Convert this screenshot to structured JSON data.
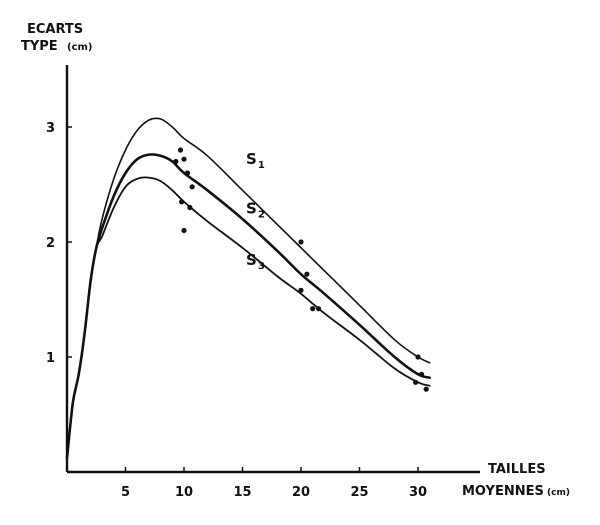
{
  "chart_data": {
    "type": "line",
    "ylabel_line1": "ECARTS",
    "ylabel_line2": "TYPE",
    "ylabel_unit": "(cm)",
    "xlabel_line1": "TAILLES",
    "xlabel_line2": "MOYENNES",
    "xlabel_unit": "(cm)",
    "xlim": [
      0,
      31
    ],
    "ylim": [
      0,
      3.5
    ],
    "x_ticks": [
      5,
      10,
      15,
      20,
      25,
      30
    ],
    "x_tick_labels": [
      "5",
      "10",
      "15",
      "20",
      "25",
      "30"
    ],
    "y_ticks": [
      1,
      2,
      3
    ],
    "y_tick_labels": [
      "1",
      "2",
      "3"
    ],
    "series": [
      {
        "name": "S",
        "subscript": "1",
        "x": [
          0,
          0.5,
          1,
          1.5,
          2,
          2.5,
          3,
          4,
          5,
          6,
          7,
          8,
          9,
          10,
          12,
          15,
          18,
          20,
          22,
          25,
          28,
          30,
          31
        ],
        "y": [
          0.12,
          0.6,
          0.85,
          1.2,
          1.65,
          1.95,
          2.2,
          2.55,
          2.8,
          2.97,
          3.06,
          3.07,
          3.0,
          2.9,
          2.75,
          2.45,
          2.15,
          1.95,
          1.75,
          1.45,
          1.15,
          1.0,
          0.95
        ]
      },
      {
        "name": "S",
        "subscript": "2",
        "x": [
          0,
          0.5,
          1,
          1.5,
          2,
          2.5,
          3,
          4,
          5,
          6,
          7,
          8,
          9,
          10,
          12,
          15,
          18,
          20,
          22,
          25,
          28,
          30,
          31
        ],
        "y": [
          0.12,
          0.6,
          0.85,
          1.2,
          1.65,
          1.95,
          2.12,
          2.4,
          2.6,
          2.72,
          2.76,
          2.75,
          2.7,
          2.6,
          2.45,
          2.2,
          1.92,
          1.72,
          1.55,
          1.28,
          1.0,
          0.85,
          0.82
        ]
      },
      {
        "name": "S",
        "subscript": "3",
        "x": [
          0,
          0.5,
          1,
          1.5,
          2,
          2.5,
          3,
          4,
          5,
          6,
          7,
          8,
          9,
          10,
          12,
          15,
          18,
          20,
          22,
          25,
          28,
          30,
          31
        ],
        "y": [
          0.12,
          0.6,
          0.85,
          1.2,
          1.65,
          1.95,
          2.05,
          2.3,
          2.48,
          2.55,
          2.56,
          2.53,
          2.45,
          2.35,
          2.18,
          1.95,
          1.7,
          1.55,
          1.38,
          1.15,
          0.9,
          0.78,
          0.75
        ]
      }
    ],
    "points": {
      "x": [
        9.3,
        9.7,
        10.0,
        10.3,
        10.7,
        9.8,
        10.5,
        10.0,
        20.0,
        20.5,
        20.0,
        21.0,
        21.5,
        30.0,
        30.3,
        29.8,
        30.7
      ],
      "y": [
        2.7,
        2.8,
        2.72,
        2.6,
        2.48,
        2.35,
        2.3,
        2.1,
        2.0,
        1.72,
        1.58,
        1.42,
        1.42,
        1.0,
        0.85,
        0.78,
        0.72
      ]
    },
    "grid": false,
    "legend": "none"
  }
}
